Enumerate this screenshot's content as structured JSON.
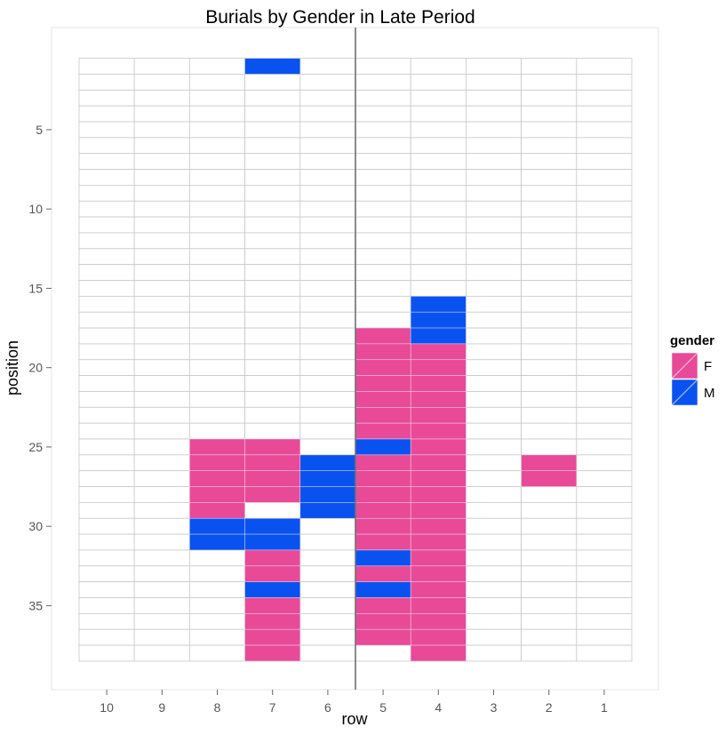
{
  "chart_data": {
    "type": "heatmap",
    "title": "Burials by Gender in Late Period",
    "xlabel": "row",
    "ylabel": "position",
    "x_categories": [
      10,
      9,
      8,
      7,
      6,
      5,
      4,
      3,
      2,
      1
    ],
    "x_tick_labels": [
      "10",
      "9",
      "8",
      "7",
      "6",
      "5",
      "4",
      "3",
      "2",
      "1"
    ],
    "y_range": [
      1,
      38
    ],
    "y_reversed": true,
    "y_ticks": [
      5,
      10,
      15,
      20,
      25,
      30,
      35
    ],
    "y_tick_labels": [
      "5",
      "10",
      "15",
      "20",
      "25",
      "30",
      "35"
    ],
    "reference_line": {
      "between_rows": [
        6,
        5
      ]
    },
    "grid": true,
    "legend": {
      "title": "gender",
      "placement": "right",
      "items": [
        {
          "label": "F",
          "color": "#e84a98"
        },
        {
          "label": "M",
          "color": "#0a52f0"
        }
      ]
    },
    "colors": {
      "F": "#e84a98",
      "M": "#0a52f0"
    },
    "cells": [
      {
        "row": 7,
        "position": 1,
        "gender": "M"
      },
      {
        "row": 8,
        "position": 25,
        "gender": "F"
      },
      {
        "row": 8,
        "position": 26,
        "gender": "F"
      },
      {
        "row": 8,
        "position": 27,
        "gender": "F"
      },
      {
        "row": 8,
        "position": 28,
        "gender": "F"
      },
      {
        "row": 8,
        "position": 29,
        "gender": "F"
      },
      {
        "row": 8,
        "position": 30,
        "gender": "M"
      },
      {
        "row": 8,
        "position": 31,
        "gender": "M"
      },
      {
        "row": 7,
        "position": 25,
        "gender": "F"
      },
      {
        "row": 7,
        "position": 26,
        "gender": "F"
      },
      {
        "row": 7,
        "position": 27,
        "gender": "F"
      },
      {
        "row": 7,
        "position": 28,
        "gender": "F"
      },
      {
        "row": 7,
        "position": 30,
        "gender": "M"
      },
      {
        "row": 7,
        "position": 31,
        "gender": "M"
      },
      {
        "row": 7,
        "position": 32,
        "gender": "F"
      },
      {
        "row": 7,
        "position": 33,
        "gender": "F"
      },
      {
        "row": 7,
        "position": 34,
        "gender": "M"
      },
      {
        "row": 7,
        "position": 35,
        "gender": "F"
      },
      {
        "row": 7,
        "position": 36,
        "gender": "F"
      },
      {
        "row": 7,
        "position": 37,
        "gender": "F"
      },
      {
        "row": 7,
        "position": 38,
        "gender": "F"
      },
      {
        "row": 6,
        "position": 26,
        "gender": "M"
      },
      {
        "row": 6,
        "position": 27,
        "gender": "M"
      },
      {
        "row": 6,
        "position": 28,
        "gender": "M"
      },
      {
        "row": 6,
        "position": 29,
        "gender": "M"
      },
      {
        "row": 5,
        "position": 18,
        "gender": "F"
      },
      {
        "row": 5,
        "position": 19,
        "gender": "F"
      },
      {
        "row": 5,
        "position": 20,
        "gender": "F"
      },
      {
        "row": 5,
        "position": 21,
        "gender": "F"
      },
      {
        "row": 5,
        "position": 22,
        "gender": "F"
      },
      {
        "row": 5,
        "position": 23,
        "gender": "F"
      },
      {
        "row": 5,
        "position": 24,
        "gender": "F"
      },
      {
        "row": 5,
        "position": 25,
        "gender": "M"
      },
      {
        "row": 5,
        "position": 26,
        "gender": "F"
      },
      {
        "row": 5,
        "position": 27,
        "gender": "F"
      },
      {
        "row": 5,
        "position": 28,
        "gender": "F"
      },
      {
        "row": 5,
        "position": 29,
        "gender": "F"
      },
      {
        "row": 5,
        "position": 30,
        "gender": "F"
      },
      {
        "row": 5,
        "position": 31,
        "gender": "F"
      },
      {
        "row": 5,
        "position": 32,
        "gender": "M"
      },
      {
        "row": 5,
        "position": 33,
        "gender": "F"
      },
      {
        "row": 5,
        "position": 34,
        "gender": "M"
      },
      {
        "row": 5,
        "position": 35,
        "gender": "F"
      },
      {
        "row": 5,
        "position": 36,
        "gender": "F"
      },
      {
        "row": 5,
        "position": 37,
        "gender": "F"
      },
      {
        "row": 4,
        "position": 16,
        "gender": "M"
      },
      {
        "row": 4,
        "position": 17,
        "gender": "M"
      },
      {
        "row": 4,
        "position": 18,
        "gender": "M"
      },
      {
        "row": 4,
        "position": 19,
        "gender": "F"
      },
      {
        "row": 4,
        "position": 20,
        "gender": "F"
      },
      {
        "row": 4,
        "position": 21,
        "gender": "F"
      },
      {
        "row": 4,
        "position": 22,
        "gender": "F"
      },
      {
        "row": 4,
        "position": 23,
        "gender": "F"
      },
      {
        "row": 4,
        "position": 24,
        "gender": "F"
      },
      {
        "row": 4,
        "position": 25,
        "gender": "F"
      },
      {
        "row": 4,
        "position": 26,
        "gender": "F"
      },
      {
        "row": 4,
        "position": 27,
        "gender": "F"
      },
      {
        "row": 4,
        "position": 28,
        "gender": "F"
      },
      {
        "row": 4,
        "position": 29,
        "gender": "F"
      },
      {
        "row": 4,
        "position": 30,
        "gender": "F"
      },
      {
        "row": 4,
        "position": 31,
        "gender": "F"
      },
      {
        "row": 4,
        "position": 32,
        "gender": "F"
      },
      {
        "row": 4,
        "position": 33,
        "gender": "F"
      },
      {
        "row": 4,
        "position": 34,
        "gender": "F"
      },
      {
        "row": 4,
        "position": 35,
        "gender": "F"
      },
      {
        "row": 4,
        "position": 36,
        "gender": "F"
      },
      {
        "row": 4,
        "position": 37,
        "gender": "F"
      },
      {
        "row": 4,
        "position": 38,
        "gender": "F"
      },
      {
        "row": 2,
        "position": 26,
        "gender": "F"
      },
      {
        "row": 2,
        "position": 27,
        "gender": "F"
      }
    ]
  }
}
